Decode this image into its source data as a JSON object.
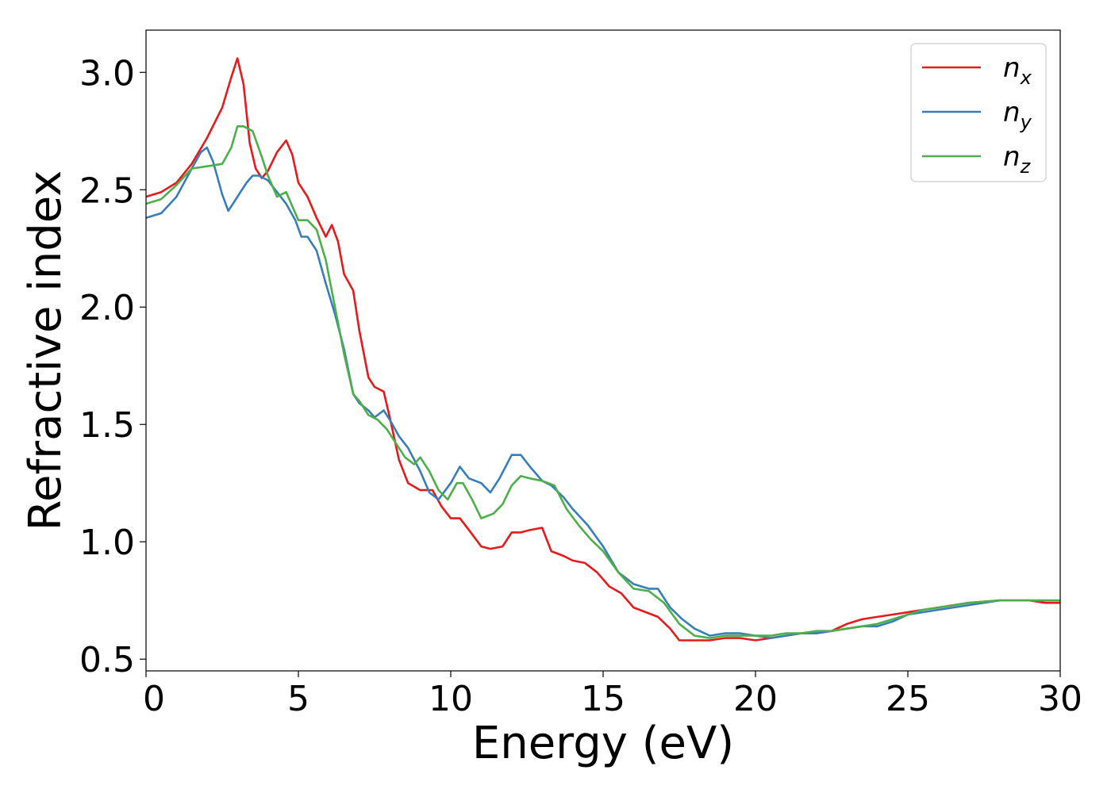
{
  "chart_data": {
    "type": "line",
    "title": "",
    "xlabel": "Energy (eV)",
    "ylabel": "Refractive index",
    "xlim": [
      0,
      30
    ],
    "ylim": [
      0.45,
      3.18
    ],
    "xticks": [
      0,
      5,
      10,
      15,
      20,
      25,
      30
    ],
    "xtick_labels": [
      "0",
      "5",
      "10",
      "15",
      "20",
      "25",
      "30"
    ],
    "yticks": [
      0.5,
      1.0,
      1.5,
      2.0,
      2.5,
      3.0
    ],
    "ytick_labels": [
      "0.5",
      "1.0",
      "1.5",
      "2.0",
      "2.5",
      "3.0"
    ],
    "grid": false,
    "legend_position": "top-right",
    "series": [
      {
        "name": "n",
        "subscript": "x",
        "color": "#e41a1c",
        "x": [
          0,
          0.5,
          1.0,
          1.5,
          2.0,
          2.5,
          2.8,
          3.0,
          3.2,
          3.4,
          3.6,
          3.8,
          4.0,
          4.3,
          4.6,
          4.8,
          5.0,
          5.3,
          5.6,
          5.9,
          6.1,
          6.3,
          6.5,
          6.8,
          7.0,
          7.3,
          7.5,
          7.8,
          8.0,
          8.3,
          8.6,
          9.0,
          9.4,
          9.7,
          10.0,
          10.3,
          10.6,
          11.0,
          11.3,
          11.7,
          12.0,
          12.3,
          12.6,
          13.0,
          13.3,
          13.7,
          14.0,
          14.4,
          14.8,
          15.2,
          15.6,
          16.0,
          16.4,
          16.8,
          17.2,
          17.5,
          18.0,
          18.5,
          19.0,
          19.5,
          20.0,
          20.5,
          21.0,
          21.5,
          22.0,
          22.5,
          23.0,
          23.5,
          24.0,
          24.5,
          25.0,
          25.5,
          26.0,
          27.0,
          28.0,
          29.0,
          29.5,
          30.0
        ],
        "y": [
          2.47,
          2.49,
          2.53,
          2.61,
          2.72,
          2.85,
          2.98,
          3.06,
          2.95,
          2.7,
          2.59,
          2.55,
          2.58,
          2.66,
          2.71,
          2.65,
          2.53,
          2.47,
          2.38,
          2.3,
          2.35,
          2.28,
          2.14,
          2.07,
          1.9,
          1.7,
          1.66,
          1.64,
          1.53,
          1.35,
          1.25,
          1.22,
          1.22,
          1.15,
          1.1,
          1.1,
          1.05,
          0.98,
          0.97,
          0.98,
          1.04,
          1.04,
          1.05,
          1.06,
          0.96,
          0.94,
          0.92,
          0.91,
          0.87,
          0.81,
          0.78,
          0.72,
          0.7,
          0.68,
          0.63,
          0.58,
          0.58,
          0.58,
          0.59,
          0.59,
          0.58,
          0.59,
          0.6,
          0.61,
          0.61,
          0.62,
          0.65,
          0.67,
          0.68,
          0.69,
          0.7,
          0.71,
          0.72,
          0.74,
          0.75,
          0.75,
          0.74,
          0.74
        ]
      },
      {
        "name": "n",
        "subscript": "y",
        "color": "#377eb8",
        "x": [
          0,
          0.5,
          1.0,
          1.5,
          1.8,
          2.0,
          2.2,
          2.5,
          2.7,
          2.9,
          3.1,
          3.3,
          3.5,
          3.7,
          4.0,
          4.3,
          4.6,
          4.9,
          5.1,
          5.3,
          5.6,
          5.9,
          6.2,
          6.5,
          6.8,
          7.0,
          7.3,
          7.5,
          7.8,
          8.0,
          8.3,
          8.6,
          9.0,
          9.3,
          9.6,
          10.0,
          10.3,
          10.6,
          11.0,
          11.3,
          11.6,
          12.0,
          12.3,
          12.6,
          13.0,
          13.3,
          13.7,
          14.0,
          14.5,
          15.0,
          15.5,
          16.0,
          16.5,
          16.8,
          17.2,
          17.6,
          18.0,
          18.5,
          19.0,
          19.5,
          20.0,
          20.5,
          21.0,
          21.5,
          22.0,
          22.5,
          23.0,
          23.5,
          24.0,
          24.5,
          25.0,
          25.5,
          26.0,
          27.0,
          28.0,
          29.0,
          29.5,
          30.0
        ],
        "y": [
          2.38,
          2.4,
          2.47,
          2.59,
          2.66,
          2.68,
          2.62,
          2.48,
          2.41,
          2.45,
          2.49,
          2.53,
          2.56,
          2.56,
          2.54,
          2.49,
          2.44,
          2.37,
          2.3,
          2.3,
          2.24,
          2.1,
          1.97,
          1.82,
          1.63,
          1.59,
          1.56,
          1.53,
          1.56,
          1.52,
          1.45,
          1.4,
          1.3,
          1.21,
          1.18,
          1.25,
          1.32,
          1.27,
          1.25,
          1.21,
          1.27,
          1.37,
          1.37,
          1.32,
          1.26,
          1.24,
          1.19,
          1.14,
          1.07,
          0.98,
          0.87,
          0.82,
          0.8,
          0.8,
          0.72,
          0.67,
          0.63,
          0.6,
          0.61,
          0.61,
          0.6,
          0.59,
          0.6,
          0.61,
          0.61,
          0.62,
          0.63,
          0.64,
          0.64,
          0.66,
          0.69,
          0.7,
          0.71,
          0.73,
          0.75,
          0.75,
          0.75,
          0.75
        ]
      },
      {
        "name": "n",
        "subscript": "z",
        "color": "#4daf4a",
        "x": [
          0,
          0.5,
          1.0,
          1.5,
          2.0,
          2.5,
          2.8,
          3.0,
          3.2,
          3.5,
          3.8,
          4.0,
          4.3,
          4.6,
          4.8,
          5.0,
          5.3,
          5.6,
          5.9,
          6.2,
          6.5,
          6.8,
          7.0,
          7.3,
          7.6,
          7.9,
          8.2,
          8.5,
          8.8,
          9.0,
          9.3,
          9.6,
          9.9,
          10.2,
          10.4,
          10.7,
          11.0,
          11.4,
          11.7,
          12.0,
          12.3,
          12.6,
          13.0,
          13.4,
          13.8,
          14.2,
          14.6,
          15.0,
          15.5,
          16.0,
          16.5,
          17.0,
          17.5,
          18.0,
          18.5,
          19.0,
          19.5,
          20.0,
          20.5,
          21.0,
          21.5,
          22.0,
          22.5,
          23.0,
          23.5,
          24.0,
          24.5,
          25.0,
          25.5,
          26.0,
          27.0,
          28.0,
          29.0,
          29.5,
          30.0
        ],
        "y": [
          2.44,
          2.46,
          2.52,
          2.59,
          2.6,
          2.61,
          2.68,
          2.77,
          2.77,
          2.75,
          2.64,
          2.56,
          2.47,
          2.49,
          2.43,
          2.37,
          2.37,
          2.33,
          2.2,
          2.0,
          1.8,
          1.63,
          1.6,
          1.54,
          1.52,
          1.48,
          1.42,
          1.36,
          1.33,
          1.36,
          1.3,
          1.22,
          1.18,
          1.25,
          1.25,
          1.18,
          1.1,
          1.12,
          1.16,
          1.24,
          1.28,
          1.27,
          1.26,
          1.24,
          1.14,
          1.07,
          1.01,
          0.96,
          0.87,
          0.8,
          0.79,
          0.74,
          0.65,
          0.6,
          0.59,
          0.6,
          0.6,
          0.6,
          0.6,
          0.61,
          0.61,
          0.62,
          0.62,
          0.63,
          0.64,
          0.65,
          0.67,
          0.69,
          0.71,
          0.72,
          0.74,
          0.75,
          0.75,
          0.75,
          0.75
        ]
      }
    ]
  }
}
